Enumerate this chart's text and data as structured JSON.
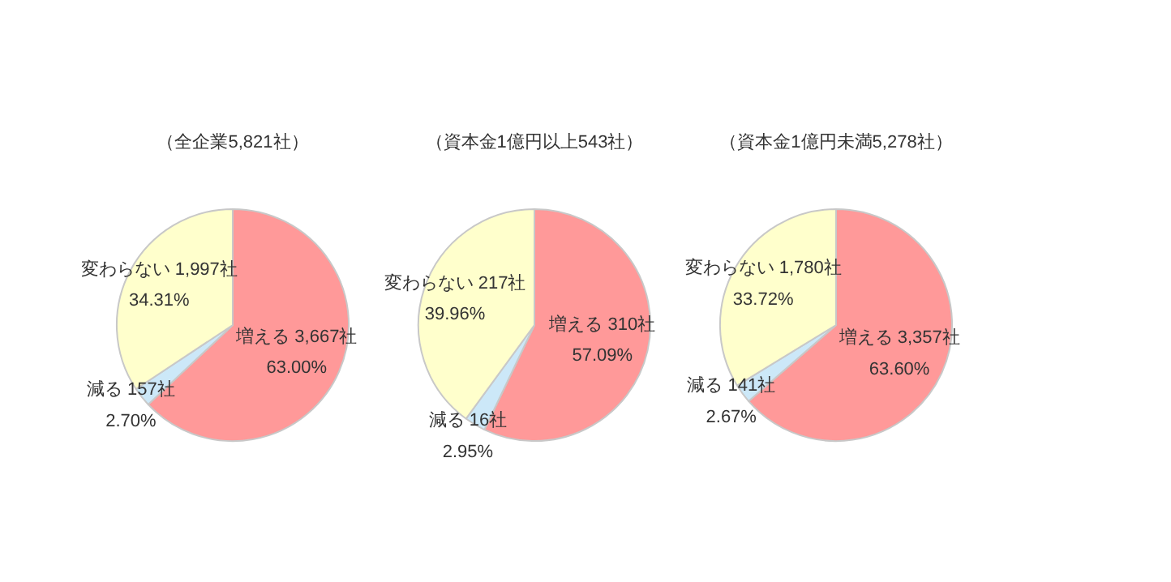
{
  "chart_data": [
    {
      "type": "pie",
      "title": "（全企業5,821社）",
      "categories": [
        "増える",
        "減る",
        "変わらない"
      ],
      "values": [
        3667,
        157,
        1997
      ],
      "colors": [
        "#ff9999",
        "#cce8f8",
        "#ffffcc"
      ],
      "value_labels": [
        "3,667社\n63.00%",
        "157社\n2.70%",
        "1,997社\n34.31%"
      ]
    },
    {
      "type": "pie",
      "title": "（資本金1億円以上543社）",
      "categories": [
        "増える",
        "減る",
        "変わらない"
      ],
      "values": [
        310,
        16,
        217
      ],
      "colors": [
        "#ff9999",
        "#cce8f8",
        "#ffffcc"
      ],
      "value_labels": [
        "310社\n57.09%",
        "16社\n2.95%",
        "217社\n39.96%"
      ]
    },
    {
      "type": "pie",
      "title": "（資本金1億円未満5,278社）",
      "categories": [
        "増える",
        "減る",
        "変わらない"
      ],
      "values": [
        3357,
        141,
        1780
      ],
      "colors": [
        "#ff9999",
        "#cce8f8",
        "#ffffcc"
      ],
      "value_labels": [
        "3,357社\n63.60%",
        "141社\n2.67%",
        "1,780社\n33.72%"
      ]
    }
  ]
}
